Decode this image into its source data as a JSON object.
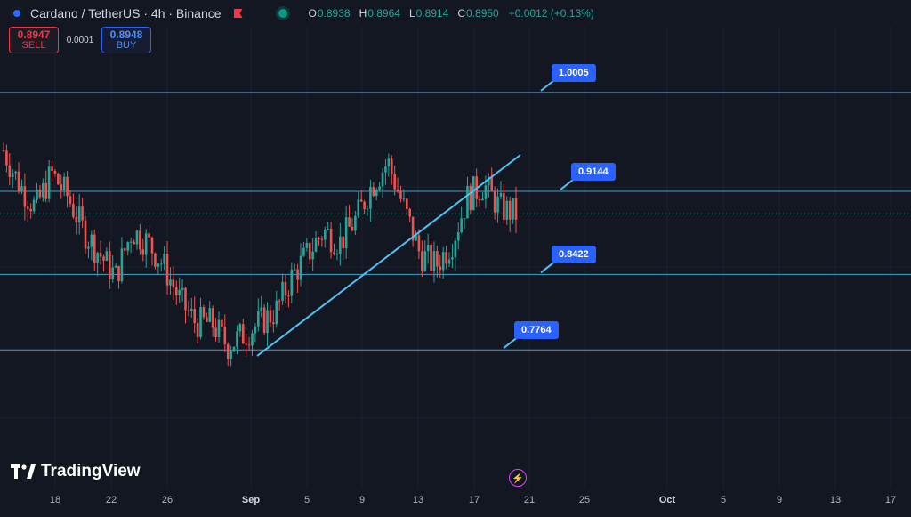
{
  "header": {
    "title": "Cardano / TetherUS · 4h · Binance",
    "ohlc": [
      {
        "k": "O",
        "v": "0.8938"
      },
      {
        "k": "H",
        "v": "0.8964"
      },
      {
        "k": "L",
        "v": "0.8914"
      },
      {
        "k": "C",
        "v": "0.8950"
      }
    ],
    "change": "+0.0012 (+0.13%)"
  },
  "trade": {
    "sell_price": "0.8947",
    "sell_label": "SELL",
    "spread": "0.0001",
    "buy_price": "0.8948",
    "buy_label": "BUY"
  },
  "brand": "TradingView",
  "colors": {
    "up": "#26a69a",
    "down": "#ef5350",
    "level_line": "#4fc3f7",
    "label_bg": "#2962ff"
  },
  "chart_data": {
    "type": "candlestick",
    "symbol": "Cardano / TetherUS",
    "interval": "4h",
    "exchange": "Binance",
    "price_levels": [
      "1.0005",
      "0.9144",
      "0.8422",
      "0.7764"
    ],
    "x_ticks": [
      "18",
      "22",
      "26",
      "Sep",
      "5",
      "9",
      "13",
      "17",
      "21",
      "25",
      "Oct",
      "5",
      "9",
      "13",
      "17"
    ],
    "approx_close_path": [
      0.95,
      0.92,
      0.9,
      0.93,
      0.91,
      0.88,
      0.86,
      0.84,
      0.88,
      0.87,
      0.85,
      0.82,
      0.8,
      0.8,
      0.78,
      0.79,
      0.8,
      0.81,
      0.84,
      0.86,
      0.88,
      0.87,
      0.89,
      0.92,
      0.94,
      0.9,
      0.86,
      0.85,
      0.87,
      0.91,
      0.92,
      0.9,
      0.895
    ]
  }
}
